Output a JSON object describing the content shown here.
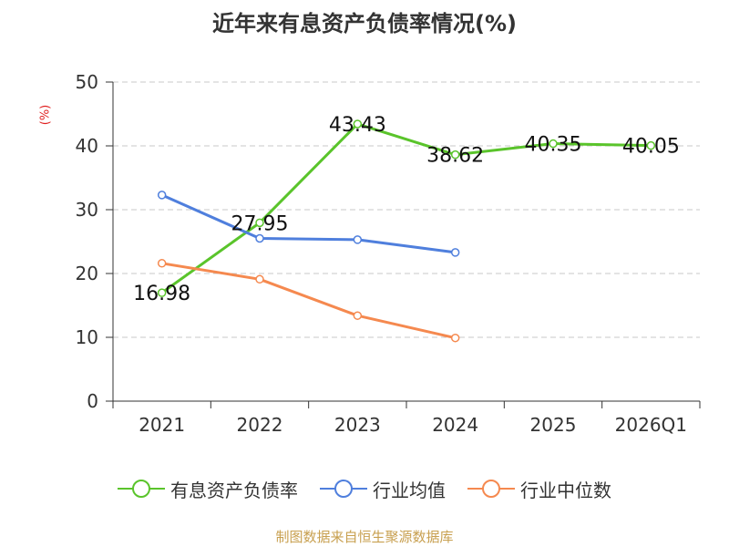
{
  "chart_data": {
    "type": "line",
    "title": "近年来有息资产负债率情况(%)",
    "ylabel": "(%)",
    "xlabel": "",
    "categories": [
      "2021",
      "2022",
      "2023",
      "2024",
      "2025",
      "2026Q1"
    ],
    "ylim": [
      0,
      50
    ],
    "yticks": [
      0,
      10,
      20,
      30,
      40,
      50
    ],
    "grid": true,
    "legend_position": "bottom",
    "series": [
      {
        "name": "有息资产负债率",
        "color": "#5ac42b",
        "values": [
          16.98,
          27.95,
          43.43,
          38.62,
          40.35,
          40.05
        ],
        "data_labels": [
          "16.98",
          "27.95",
          "43.43",
          "38.62",
          "40.35",
          "40.05"
        ]
      },
      {
        "name": "行业均值",
        "color": "#4f7fdd",
        "values": [
          32.3,
          25.5,
          25.3,
          23.3,
          null,
          null
        ]
      },
      {
        "name": "行业中位数",
        "color": "#f5894f",
        "values": [
          21.6,
          19.1,
          13.4,
          9.9,
          null,
          null
        ]
      }
    ]
  },
  "footer": {
    "source": "制图数据来自恒生聚源数据库"
  }
}
